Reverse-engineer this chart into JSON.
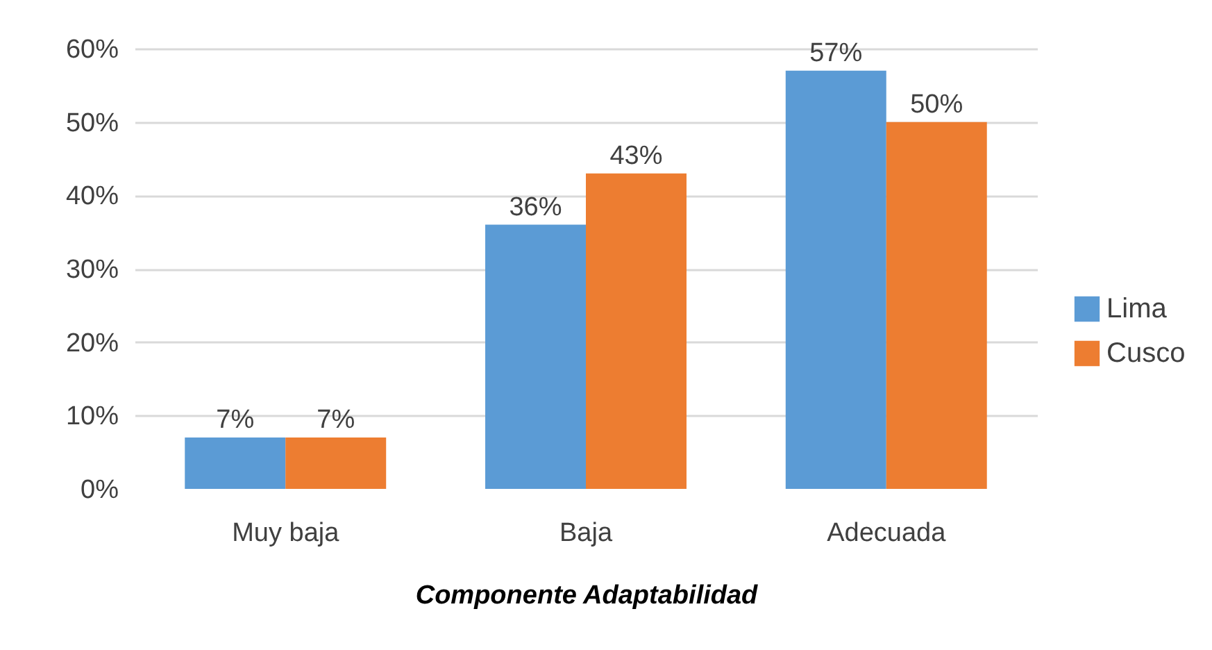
{
  "chart_data": {
    "type": "bar",
    "xlabel": "Componente Adaptabilidad",
    "categories": [
      "Muy baja",
      "Baja",
      "Adecuada"
    ],
    "series": [
      {
        "name": "Lima",
        "color": "#5b9bd5",
        "values": [
          7,
          36,
          57
        ],
        "value_labels": [
          "7%",
          "36%",
          "57%"
        ]
      },
      {
        "name": "Cusco",
        "color": "#ed7d31",
        "values": [
          7,
          43,
          50
        ],
        "value_labels": [
          "7%",
          "43%",
          "50%"
        ]
      }
    ],
    "ylim": [
      0,
      60
    ],
    "yticks": [
      {
        "value": 0,
        "label": "0%"
      },
      {
        "value": 10,
        "label": "10%"
      },
      {
        "value": 20,
        "label": "20%"
      },
      {
        "value": 30,
        "label": "30%"
      },
      {
        "value": 40,
        "label": "40%"
      },
      {
        "value": 50,
        "label": "50%"
      },
      {
        "value": 60,
        "label": "60%"
      }
    ],
    "grid": "y",
    "legend": "right"
  }
}
